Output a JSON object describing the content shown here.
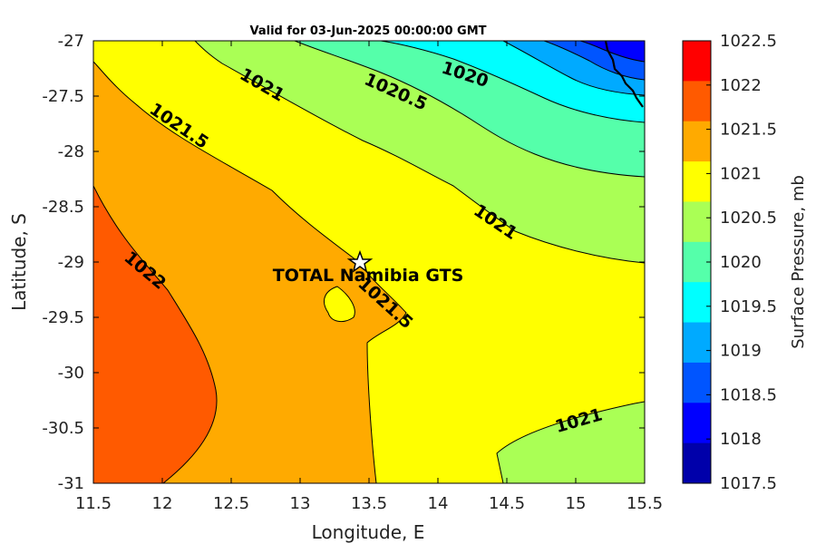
{
  "title": "Valid for 03-Jun-2025 00:00:00 GMT",
  "x_axis": {
    "label": "Longitude, E",
    "range": [
      11.5,
      15.5
    ],
    "ticks": [
      "11.5",
      "12",
      "12.5",
      "13",
      "13.5",
      "14",
      "14.5",
      "15",
      "15.5"
    ]
  },
  "y_axis": {
    "label": "Latitude, S",
    "range": [
      -31,
      -27
    ],
    "ticks": [
      "-27",
      "-27.5",
      "-28",
      "-28.5",
      "-29",
      "-29.5",
      "-30",
      "-30.5",
      "-31"
    ]
  },
  "colorbar": {
    "label": "Surface Pressure, mb",
    "ticks": [
      "1022.5",
      "1022",
      "1021.5",
      "1021",
      "1020.5",
      "1020",
      "1019.5",
      "1019",
      "1018.5",
      "1018",
      "1017.5"
    ],
    "colors": [
      "#ff0000",
      "#ff5a00",
      "#ffaa00",
      "#ffff00",
      "#aaff55",
      "#55ffaa",
      "#00ffff",
      "#00aaff",
      "#0055ff",
      "#0000ff",
      "#0000aa"
    ]
  },
  "station": {
    "name": "TOTAL Namibia GTS",
    "lon": 13.42,
    "lat": -29.0
  },
  "contour_labels": [
    "1021",
    "1020.5",
    "1020",
    "1021.5",
    "1021",
    "1022",
    "1021.5",
    "1021"
  ],
  "chart_data": {
    "type": "heatmap",
    "title": "Valid for 03-Jun-2025 00:00:00 GMT",
    "xlabel": "Longitude, E",
    "ylabel": "Latitude, S",
    "xlim": [
      11.5,
      15.5
    ],
    "ylim": [
      -31,
      -27
    ],
    "zlabel": "Surface Pressure, mb",
    "zlim": [
      1017.5,
      1022.5
    ],
    "contour_levels": [
      1018,
      1018.5,
      1019,
      1019.5,
      1020,
      1020.5,
      1021,
      1021.5,
      1022
    ],
    "labeled_contours": [
      1022,
      1021.5,
      1021,
      1020.5,
      1020
    ],
    "grid": false,
    "legend": "colorbar-right"
  }
}
